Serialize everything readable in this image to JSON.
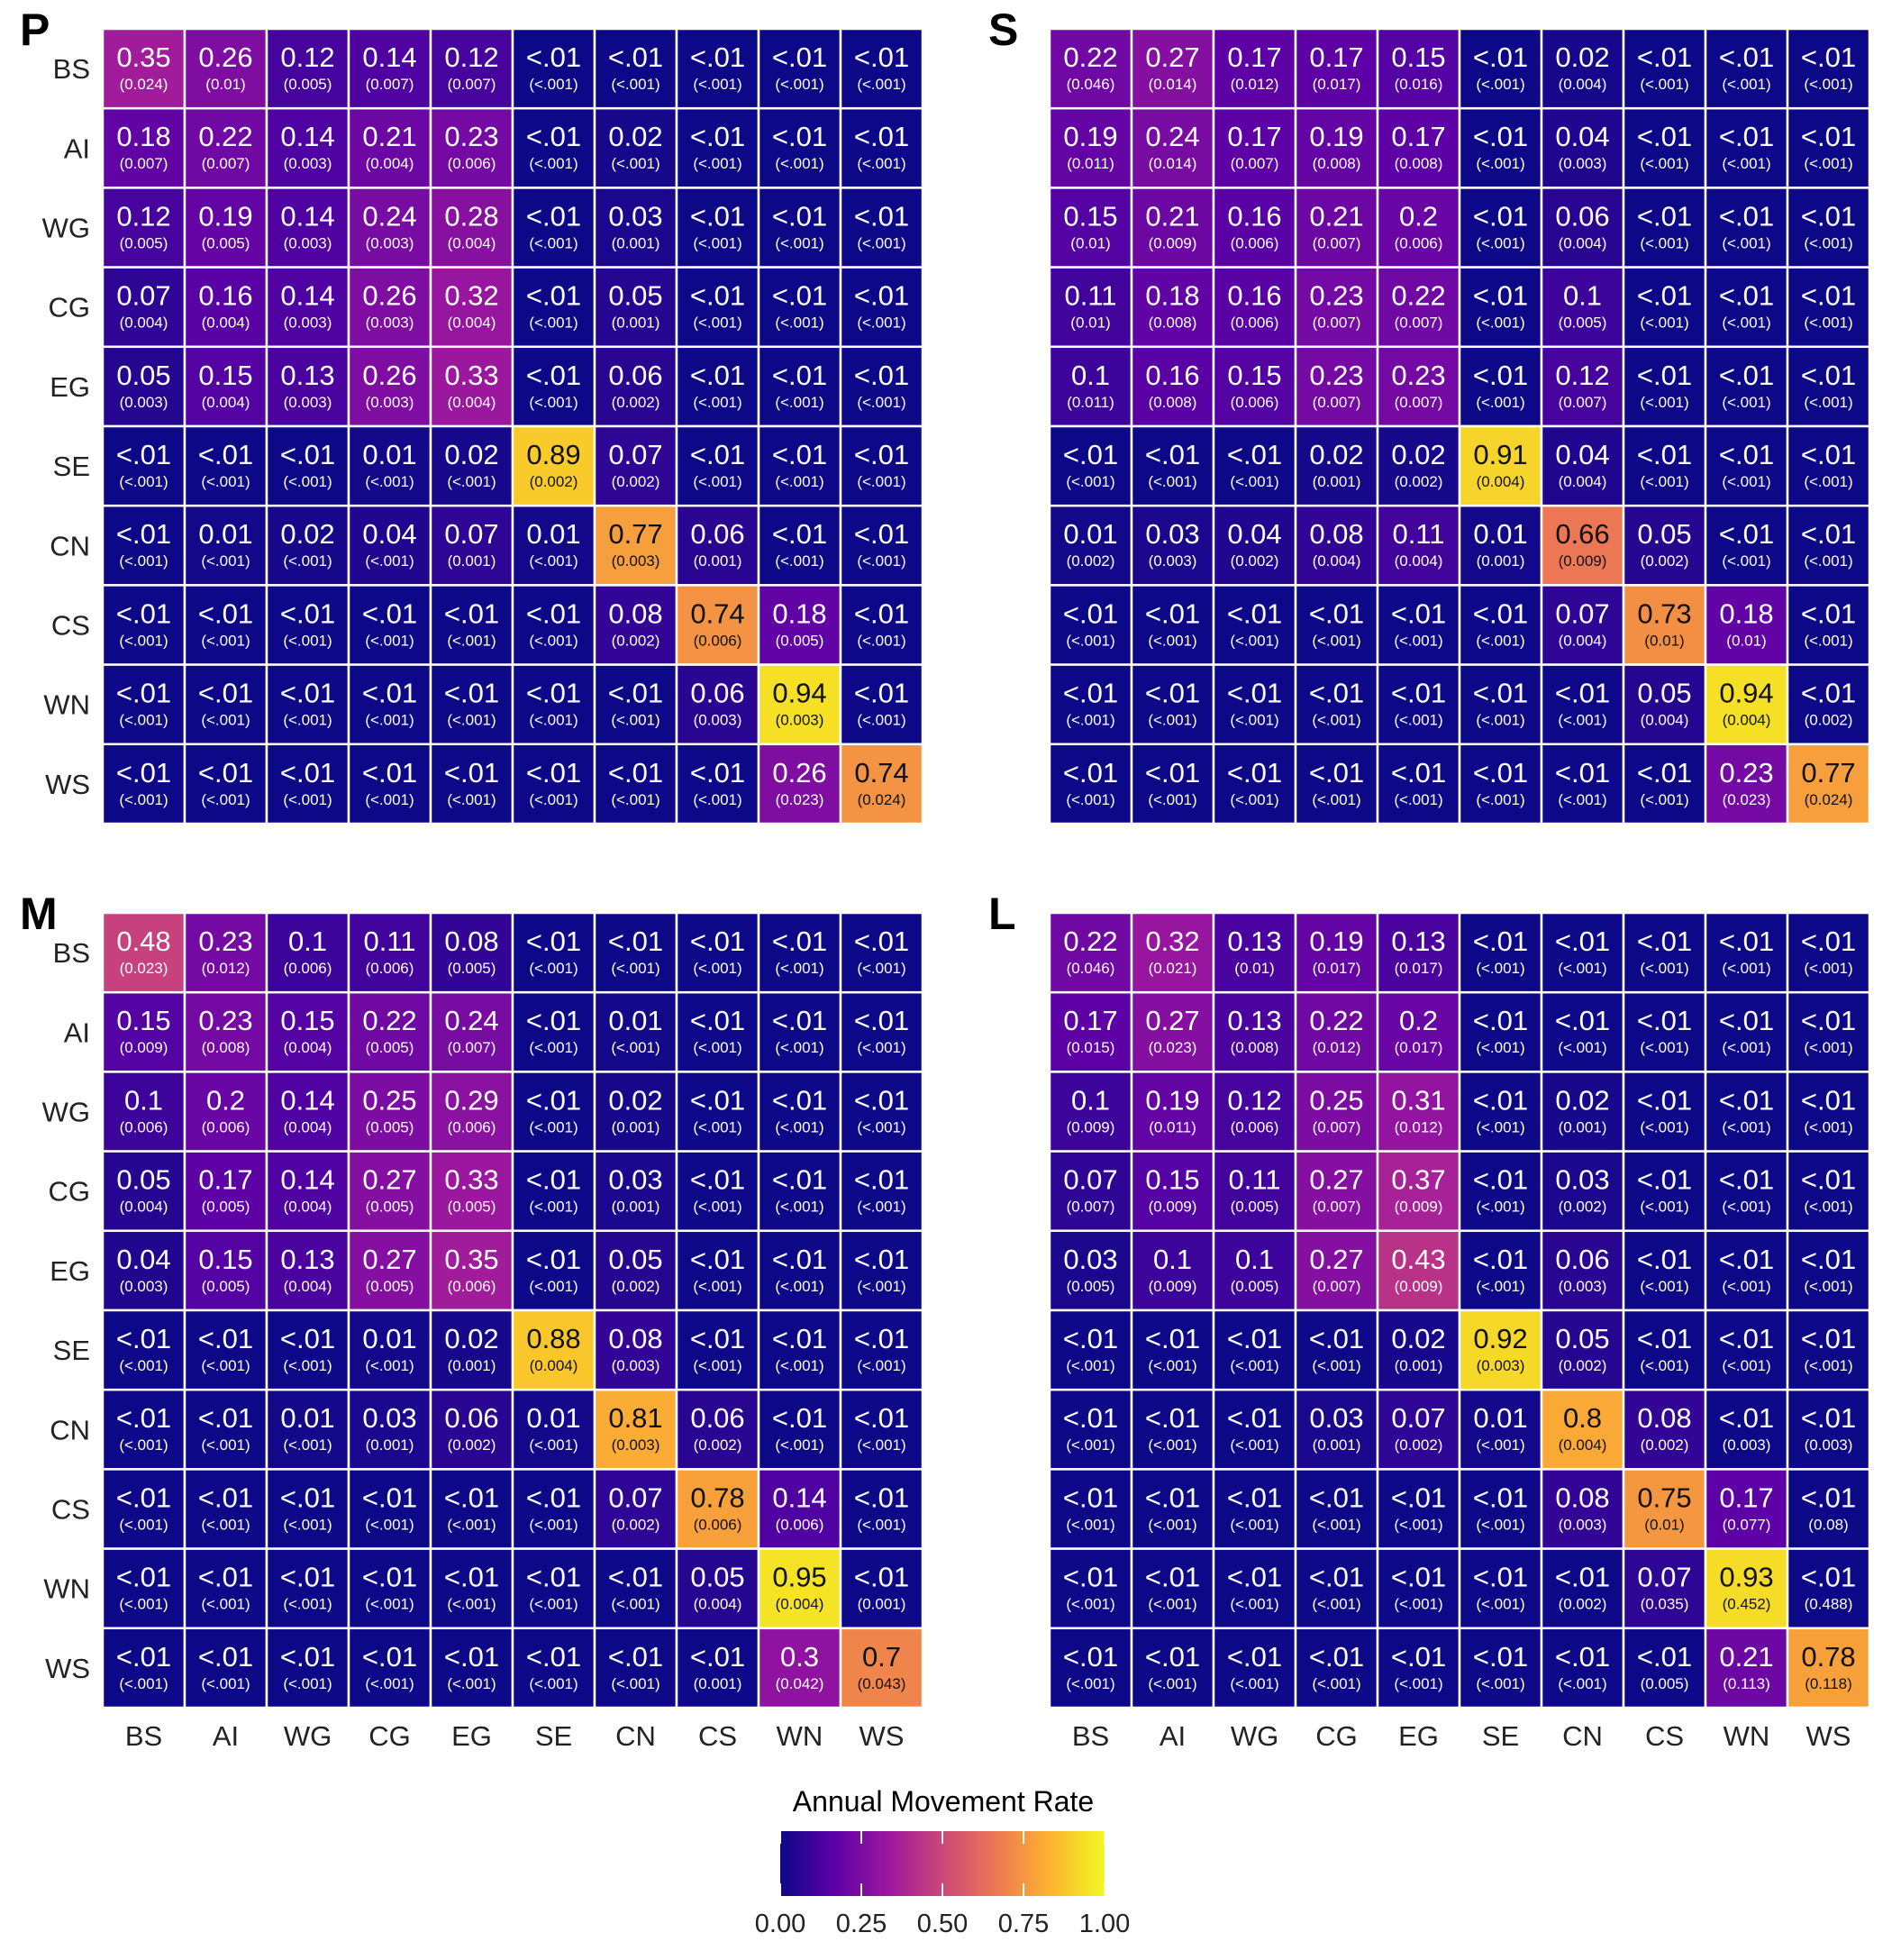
{
  "chart_data": [
    {
      "type": "heatmap",
      "title": "P",
      "rows": [
        "BS",
        "AI",
        "WG",
        "CG",
        "EG",
        "SE",
        "CN",
        "CS",
        "WN",
        "WS"
      ],
      "cols": [
        "BS",
        "AI",
        "WG",
        "CG",
        "EG",
        "SE",
        "CN",
        "CS",
        "WN",
        "WS"
      ],
      "values": [
        [
          "0.35",
          "0.26",
          "0.12",
          "0.14",
          "0.12",
          "<.01",
          "<.01",
          "<.01",
          "<.01",
          "<.01"
        ],
        [
          "0.18",
          "0.22",
          "0.14",
          "0.21",
          "0.23",
          "<.01",
          "0.02",
          "<.01",
          "<.01",
          "<.01"
        ],
        [
          "0.12",
          "0.19",
          "0.14",
          "0.24",
          "0.28",
          "<.01",
          "0.03",
          "<.01",
          "<.01",
          "<.01"
        ],
        [
          "0.07",
          "0.16",
          "0.14",
          "0.26",
          "0.32",
          "<.01",
          "0.05",
          "<.01",
          "<.01",
          "<.01"
        ],
        [
          "0.05",
          "0.15",
          "0.13",
          "0.26",
          "0.33",
          "<.01",
          "0.06",
          "<.01",
          "<.01",
          "<.01"
        ],
        [
          "<.01",
          "<.01",
          "<.01",
          "0.01",
          "0.02",
          "0.89",
          "0.07",
          "<.01",
          "<.01",
          "<.01"
        ],
        [
          "<.01",
          "0.01",
          "0.02",
          "0.04",
          "0.07",
          "0.01",
          "0.77",
          "0.06",
          "<.01",
          "<.01"
        ],
        [
          "<.01",
          "<.01",
          "<.01",
          "<.01",
          "<.01",
          "<.01",
          "0.08",
          "0.74",
          "0.18",
          "<.01"
        ],
        [
          "<.01",
          "<.01",
          "<.01",
          "<.01",
          "<.01",
          "<.01",
          "<.01",
          "0.06",
          "0.94",
          "<.01"
        ],
        [
          "<.01",
          "<.01",
          "<.01",
          "<.01",
          "<.01",
          "<.01",
          "<.01",
          "<.01",
          "0.26",
          "0.74"
        ]
      ],
      "se": [
        [
          "(0.024)",
          "(0.01)",
          "(0.005)",
          "(0.007)",
          "(0.007)",
          "(<.001)",
          "(<.001)",
          "(<.001)",
          "(<.001)",
          "(<.001)"
        ],
        [
          "(0.007)",
          "(0.007)",
          "(0.003)",
          "(0.004)",
          "(0.006)",
          "(<.001)",
          "(<.001)",
          "(<.001)",
          "(<.001)",
          "(<.001)"
        ],
        [
          "(0.005)",
          "(0.005)",
          "(0.003)",
          "(0.003)",
          "(0.004)",
          "(<.001)",
          "(0.001)",
          "(<.001)",
          "(<.001)",
          "(<.001)"
        ],
        [
          "(0.004)",
          "(0.004)",
          "(0.003)",
          "(0.003)",
          "(0.004)",
          "(<.001)",
          "(0.001)",
          "(<.001)",
          "(<.001)",
          "(<.001)"
        ],
        [
          "(0.003)",
          "(0.004)",
          "(0.003)",
          "(0.003)",
          "(0.004)",
          "(<.001)",
          "(0.002)",
          "(<.001)",
          "(<.001)",
          "(<.001)"
        ],
        [
          "(<.001)",
          "(<.001)",
          "(<.001)",
          "(<.001)",
          "(<.001)",
          "(0.002)",
          "(0.002)",
          "(<.001)",
          "(<.001)",
          "(<.001)"
        ],
        [
          "(<.001)",
          "(<.001)",
          "(<.001)",
          "(<.001)",
          "(0.001)",
          "(<.001)",
          "(0.003)",
          "(0.001)",
          "(<.001)",
          "(<.001)"
        ],
        [
          "(<.001)",
          "(<.001)",
          "(<.001)",
          "(<.001)",
          "(<.001)",
          "(<.001)",
          "(0.002)",
          "(0.006)",
          "(0.005)",
          "(<.001)"
        ],
        [
          "(<.001)",
          "(<.001)",
          "(<.001)",
          "(<.001)",
          "(<.001)",
          "(<.001)",
          "(<.001)",
          "(0.003)",
          "(0.003)",
          "(<.001)"
        ],
        [
          "(<.001)",
          "(<.001)",
          "(<.001)",
          "(<.001)",
          "(<.001)",
          "(<.001)",
          "(<.001)",
          "(<.001)",
          "(0.023)",
          "(0.024)"
        ]
      ]
    },
    {
      "type": "heatmap",
      "title": "S",
      "rows": [
        "BS",
        "AI",
        "WG",
        "CG",
        "EG",
        "SE",
        "CN",
        "CS",
        "WN",
        "WS"
      ],
      "cols": [
        "BS",
        "AI",
        "WG",
        "CG",
        "EG",
        "SE",
        "CN",
        "CS",
        "WN",
        "WS"
      ],
      "values": [
        [
          "0.22",
          "0.27",
          "0.17",
          "0.17",
          "0.15",
          "<.01",
          "0.02",
          "<.01",
          "<.01",
          "<.01"
        ],
        [
          "0.19",
          "0.24",
          "0.17",
          "0.19",
          "0.17",
          "<.01",
          "0.04",
          "<.01",
          "<.01",
          "<.01"
        ],
        [
          "0.15",
          "0.21",
          "0.16",
          "0.21",
          "0.2",
          "<.01",
          "0.06",
          "<.01",
          "<.01",
          "<.01"
        ],
        [
          "0.11",
          "0.18",
          "0.16",
          "0.23",
          "0.22",
          "<.01",
          "0.1",
          "<.01",
          "<.01",
          "<.01"
        ],
        [
          "0.1",
          "0.16",
          "0.15",
          "0.23",
          "0.23",
          "<.01",
          "0.12",
          "<.01",
          "<.01",
          "<.01"
        ],
        [
          "<.01",
          "<.01",
          "<.01",
          "0.02",
          "0.02",
          "0.91",
          "0.04",
          "<.01",
          "<.01",
          "<.01"
        ],
        [
          "0.01",
          "0.03",
          "0.04",
          "0.08",
          "0.11",
          "0.01",
          "0.66",
          "0.05",
          "<.01",
          "<.01"
        ],
        [
          "<.01",
          "<.01",
          "<.01",
          "<.01",
          "<.01",
          "<.01",
          "0.07",
          "0.73",
          "0.18",
          "<.01"
        ],
        [
          "<.01",
          "<.01",
          "<.01",
          "<.01",
          "<.01",
          "<.01",
          "<.01",
          "0.05",
          "0.94",
          "<.01"
        ],
        [
          "<.01",
          "<.01",
          "<.01",
          "<.01",
          "<.01",
          "<.01",
          "<.01",
          "<.01",
          "0.23",
          "0.77"
        ]
      ],
      "se": [
        [
          "(0.046)",
          "(0.014)",
          "(0.012)",
          "(0.017)",
          "(0.016)",
          "(<.001)",
          "(0.004)",
          "(<.001)",
          "(<.001)",
          "(<.001)"
        ],
        [
          "(0.011)",
          "(0.014)",
          "(0.007)",
          "(0.008)",
          "(0.008)",
          "(<.001)",
          "(0.003)",
          "(<.001)",
          "(<.001)",
          "(<.001)"
        ],
        [
          "(0.01)",
          "(0.009)",
          "(0.006)",
          "(0.007)",
          "(0.006)",
          "(<.001)",
          "(0.004)",
          "(<.001)",
          "(<.001)",
          "(<.001)"
        ],
        [
          "(0.01)",
          "(0.008)",
          "(0.006)",
          "(0.007)",
          "(0.007)",
          "(<.001)",
          "(0.005)",
          "(<.001)",
          "(<.001)",
          "(<.001)"
        ],
        [
          "(0.011)",
          "(0.008)",
          "(0.006)",
          "(0.007)",
          "(0.007)",
          "(<.001)",
          "(0.007)",
          "(<.001)",
          "(<.001)",
          "(<.001)"
        ],
        [
          "(<.001)",
          "(<.001)",
          "(<.001)",
          "(0.001)",
          "(0.002)",
          "(0.004)",
          "(0.004)",
          "(<.001)",
          "(<.001)",
          "(<.001)"
        ],
        [
          "(0.002)",
          "(0.003)",
          "(0.002)",
          "(0.004)",
          "(0.004)",
          "(0.001)",
          "(0.009)",
          "(0.002)",
          "(<.001)",
          "(<.001)"
        ],
        [
          "(<.001)",
          "(<.001)",
          "(<.001)",
          "(<.001)",
          "(<.001)",
          "(<.001)",
          "(0.004)",
          "(0.01)",
          "(0.01)",
          "(<.001)"
        ],
        [
          "(<.001)",
          "(<.001)",
          "(<.001)",
          "(<.001)",
          "(<.001)",
          "(<.001)",
          "(<.001)",
          "(0.004)",
          "(0.004)",
          "(0.002)"
        ],
        [
          "(<.001)",
          "(<.001)",
          "(<.001)",
          "(<.001)",
          "(<.001)",
          "(<.001)",
          "(<.001)",
          "(<.001)",
          "(0.023)",
          "(0.024)"
        ]
      ]
    },
    {
      "type": "heatmap",
      "title": "M",
      "rows": [
        "BS",
        "AI",
        "WG",
        "CG",
        "EG",
        "SE",
        "CN",
        "CS",
        "WN",
        "WS"
      ],
      "cols": [
        "BS",
        "AI",
        "WG",
        "CG",
        "EG",
        "SE",
        "CN",
        "CS",
        "WN",
        "WS"
      ],
      "values": [
        [
          "0.48",
          "0.23",
          "0.1",
          "0.11",
          "0.08",
          "<.01",
          "<.01",
          "<.01",
          "<.01",
          "<.01"
        ],
        [
          "0.15",
          "0.23",
          "0.15",
          "0.22",
          "0.24",
          "<.01",
          "0.01",
          "<.01",
          "<.01",
          "<.01"
        ],
        [
          "0.1",
          "0.2",
          "0.14",
          "0.25",
          "0.29",
          "<.01",
          "0.02",
          "<.01",
          "<.01",
          "<.01"
        ],
        [
          "0.05",
          "0.17",
          "0.14",
          "0.27",
          "0.33",
          "<.01",
          "0.03",
          "<.01",
          "<.01",
          "<.01"
        ],
        [
          "0.04",
          "0.15",
          "0.13",
          "0.27",
          "0.35",
          "<.01",
          "0.05",
          "<.01",
          "<.01",
          "<.01"
        ],
        [
          "<.01",
          "<.01",
          "<.01",
          "0.01",
          "0.02",
          "0.88",
          "0.08",
          "<.01",
          "<.01",
          "<.01"
        ],
        [
          "<.01",
          "<.01",
          "0.01",
          "0.03",
          "0.06",
          "0.01",
          "0.81",
          "0.06",
          "<.01",
          "<.01"
        ],
        [
          "<.01",
          "<.01",
          "<.01",
          "<.01",
          "<.01",
          "<.01",
          "0.07",
          "0.78",
          "0.14",
          "<.01"
        ],
        [
          "<.01",
          "<.01",
          "<.01",
          "<.01",
          "<.01",
          "<.01",
          "<.01",
          "0.05",
          "0.95",
          "<.01"
        ],
        [
          "<.01",
          "<.01",
          "<.01",
          "<.01",
          "<.01",
          "<.01",
          "<.01",
          "<.01",
          "0.3",
          "0.7"
        ]
      ],
      "se": [
        [
          "(0.023)",
          "(0.012)",
          "(0.006)",
          "(0.006)",
          "(0.005)",
          "(<.001)",
          "(<.001)",
          "(<.001)",
          "(<.001)",
          "(<.001)"
        ],
        [
          "(0.009)",
          "(0.008)",
          "(0.004)",
          "(0.005)",
          "(0.007)",
          "(<.001)",
          "(<.001)",
          "(<.001)",
          "(<.001)",
          "(<.001)"
        ],
        [
          "(0.006)",
          "(0.006)",
          "(0.004)",
          "(0.005)",
          "(0.006)",
          "(<.001)",
          "(0.001)",
          "(<.001)",
          "(<.001)",
          "(<.001)"
        ],
        [
          "(0.004)",
          "(0.005)",
          "(0.004)",
          "(0.005)",
          "(0.005)",
          "(<.001)",
          "(0.001)",
          "(<.001)",
          "(<.001)",
          "(<.001)"
        ],
        [
          "(0.003)",
          "(0.005)",
          "(0.004)",
          "(0.005)",
          "(0.006)",
          "(<.001)",
          "(0.002)",
          "(<.001)",
          "(<.001)",
          "(<.001)"
        ],
        [
          "(<.001)",
          "(<.001)",
          "(<.001)",
          "(<.001)",
          "(0.001)",
          "(0.004)",
          "(0.003)",
          "(<.001)",
          "(<.001)",
          "(<.001)"
        ],
        [
          "(<.001)",
          "(<.001)",
          "(<.001)",
          "(0.001)",
          "(0.002)",
          "(<.001)",
          "(0.003)",
          "(0.002)",
          "(<.001)",
          "(<.001)"
        ],
        [
          "(<.001)",
          "(<.001)",
          "(<.001)",
          "(<.001)",
          "(<.001)",
          "(<.001)",
          "(0.002)",
          "(0.006)",
          "(0.006)",
          "(<.001)"
        ],
        [
          "(<.001)",
          "(<.001)",
          "(<.001)",
          "(<.001)",
          "(<.001)",
          "(<.001)",
          "(<.001)",
          "(0.004)",
          "(0.004)",
          "(0.001)"
        ],
        [
          "(<.001)",
          "(<.001)",
          "(<.001)",
          "(<.001)",
          "(<.001)",
          "(<.001)",
          "(<.001)",
          "(0.001)",
          "(0.042)",
          "(0.043)"
        ]
      ]
    },
    {
      "type": "heatmap",
      "title": "L",
      "rows": [
        "BS",
        "AI",
        "WG",
        "CG",
        "EG",
        "SE",
        "CN",
        "CS",
        "WN",
        "WS"
      ],
      "cols": [
        "BS",
        "AI",
        "WG",
        "CG",
        "EG",
        "SE",
        "CN",
        "CS",
        "WN",
        "WS"
      ],
      "values": [
        [
          "0.22",
          "0.32",
          "0.13",
          "0.19",
          "0.13",
          "<.01",
          "<.01",
          "<.01",
          "<.01",
          "<.01"
        ],
        [
          "0.17",
          "0.27",
          "0.13",
          "0.22",
          "0.2",
          "<.01",
          "<.01",
          "<.01",
          "<.01",
          "<.01"
        ],
        [
          "0.1",
          "0.19",
          "0.12",
          "0.25",
          "0.31",
          "<.01",
          "0.02",
          "<.01",
          "<.01",
          "<.01"
        ],
        [
          "0.07",
          "0.15",
          "0.11",
          "0.27",
          "0.37",
          "<.01",
          "0.03",
          "<.01",
          "<.01",
          "<.01"
        ],
        [
          "0.03",
          "0.1",
          "0.1",
          "0.27",
          "0.43",
          "<.01",
          "0.06",
          "<.01",
          "<.01",
          "<.01"
        ],
        [
          "<.01",
          "<.01",
          "<.01",
          "<.01",
          "0.02",
          "0.92",
          "0.05",
          "<.01",
          "<.01",
          "<.01"
        ],
        [
          "<.01",
          "<.01",
          "<.01",
          "0.03",
          "0.07",
          "0.01",
          "0.8",
          "0.08",
          "<.01",
          "<.01"
        ],
        [
          "<.01",
          "<.01",
          "<.01",
          "<.01",
          "<.01",
          "<.01",
          "0.08",
          "0.75",
          "0.17",
          "<.01"
        ],
        [
          "<.01",
          "<.01",
          "<.01",
          "<.01",
          "<.01",
          "<.01",
          "<.01",
          "0.07",
          "0.93",
          "<.01"
        ],
        [
          "<.01",
          "<.01",
          "<.01",
          "<.01",
          "<.01",
          "<.01",
          "<.01",
          "<.01",
          "0.21",
          "0.78"
        ]
      ],
      "se": [
        [
          "(0.046)",
          "(0.021)",
          "(0.01)",
          "(0.017)",
          "(0.017)",
          "(<.001)",
          "(<.001)",
          "(<.001)",
          "(<.001)",
          "(<.001)"
        ],
        [
          "(0.015)",
          "(0.023)",
          "(0.008)",
          "(0.012)",
          "(0.017)",
          "(<.001)",
          "(<.001)",
          "(<.001)",
          "(<.001)",
          "(<.001)"
        ],
        [
          "(0.009)",
          "(0.011)",
          "(0.006)",
          "(0.007)",
          "(0.012)",
          "(<.001)",
          "(0.001)",
          "(<.001)",
          "(<.001)",
          "(<.001)"
        ],
        [
          "(0.007)",
          "(0.009)",
          "(0.005)",
          "(0.007)",
          "(0.009)",
          "(<.001)",
          "(0.002)",
          "(<.001)",
          "(<.001)",
          "(<.001)"
        ],
        [
          "(0.005)",
          "(0.009)",
          "(0.005)",
          "(0.007)",
          "(0.009)",
          "(<.001)",
          "(0.003)",
          "(<.001)",
          "(<.001)",
          "(<.001)"
        ],
        [
          "(<.001)",
          "(<.001)",
          "(<.001)",
          "(<.001)",
          "(0.001)",
          "(0.003)",
          "(0.002)",
          "(<.001)",
          "(<.001)",
          "(<.001)"
        ],
        [
          "(<.001)",
          "(<.001)",
          "(<.001)",
          "(0.001)",
          "(0.002)",
          "(<.001)",
          "(0.004)",
          "(0.002)",
          "(0.003)",
          "(0.003)"
        ],
        [
          "(<.001)",
          "(<.001)",
          "(<.001)",
          "(<.001)",
          "(<.001)",
          "(<.001)",
          "(0.003)",
          "(0.01)",
          "(0.077)",
          "(0.08)"
        ],
        [
          "(<.001)",
          "(<.001)",
          "(<.001)",
          "(<.001)",
          "(<.001)",
          "(<.001)",
          "(0.002)",
          "(0.035)",
          "(0.452)",
          "(0.488)"
        ],
        [
          "(<.001)",
          "(<.001)",
          "(<.001)",
          "(<.001)",
          "(<.001)",
          "(<.001)",
          "(<.001)",
          "(0.005)",
          "(0.113)",
          "(0.118)"
        ]
      ]
    }
  ],
  "legend": {
    "title": "Annual Movement Rate",
    "ticks": [
      "0.00",
      "0.25",
      "0.50",
      "0.75",
      "1.00"
    ],
    "range": [
      0,
      1
    ],
    "colors": [
      "#0d0887",
      "#5c01a6",
      "#9c179e",
      "#cc4778",
      "#ed7953",
      "#fdb42f",
      "#f0f921"
    ]
  }
}
